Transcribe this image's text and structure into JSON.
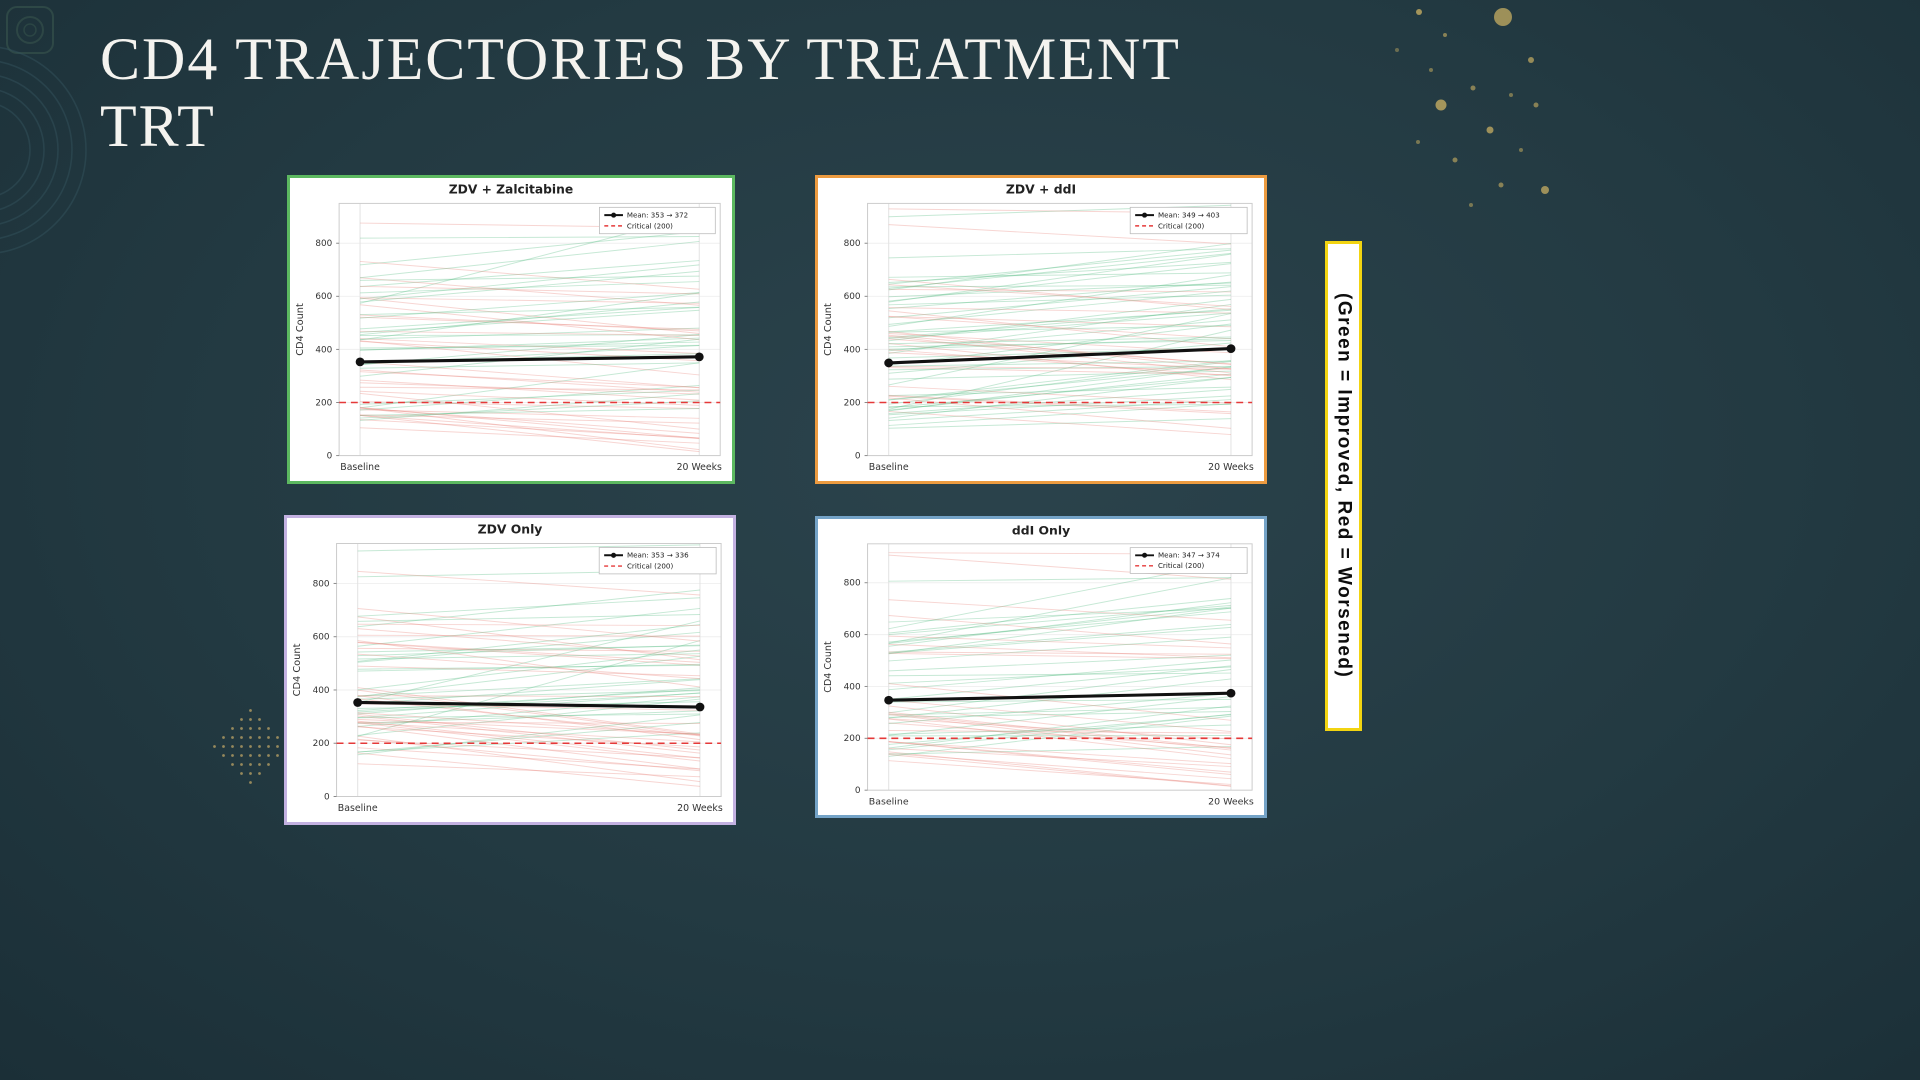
{
  "slide": {
    "title": "CD4 TRAJECTORIES BY TREATMENT\nTRT",
    "side_note": "(Green = Improved, Red = Worsened)",
    "background_color": "#223840",
    "side_note_border_color": "#f2d411"
  },
  "chart_data": [
    {
      "type": "line",
      "title": "ZDV + Zalcitabine",
      "panel_border_color": "#5cb860",
      "x_categories": [
        "Baseline",
        "20 Weeks"
      ],
      "ylabel": "CD4 Count",
      "ylim": [
        0,
        950
      ],
      "yticks": [
        0,
        200,
        400,
        600,
        800
      ],
      "grid": true,
      "legend_position": "upper right",
      "series": [
        {
          "name": "Mean: 353 → 372",
          "style": "mean",
          "values": [
            353,
            372
          ],
          "color": "#111111"
        },
        {
          "name": "Critical (200)",
          "style": "critical",
          "values": [
            200,
            200
          ],
          "color": "#e53939"
        }
      ],
      "individual_trajectories": {
        "count": 62,
        "seed": 11,
        "improved_color": "#57bd84",
        "worsened_color": "#e8857c",
        "note": "per-patient CD4 lines; green = improved, red = worsened"
      }
    },
    {
      "type": "line",
      "title": "ZDV + ddI",
      "panel_border_color": "#ec9b40",
      "x_categories": [
        "Baseline",
        "20 Weeks"
      ],
      "ylabel": "CD4 Count",
      "ylim": [
        0,
        950
      ],
      "yticks": [
        0,
        200,
        400,
        600,
        800
      ],
      "grid": true,
      "legend_position": "upper right",
      "series": [
        {
          "name": "Mean: 349 → 403",
          "style": "mean",
          "values": [
            349,
            403
          ],
          "color": "#111111"
        },
        {
          "name": "Critical (200)",
          "style": "critical",
          "values": [
            200,
            200
          ],
          "color": "#e53939"
        }
      ],
      "individual_trajectories": {
        "count": 72,
        "seed": 23,
        "improved_color": "#57bd84",
        "worsened_color": "#e8857c",
        "note": "per-patient CD4 lines; green = improved, red = worsened"
      }
    },
    {
      "type": "line",
      "title": "ZDV Only",
      "panel_border_color": "#c3b1e1",
      "x_categories": [
        "Baseline",
        "20 Weeks"
      ],
      "ylabel": "CD4 Count",
      "ylim": [
        0,
        950
      ],
      "yticks": [
        0,
        200,
        400,
        600,
        800
      ],
      "grid": true,
      "legend_position": "upper right",
      "series": [
        {
          "name": "Mean: 353 → 336",
          "style": "mean",
          "values": [
            353,
            336
          ],
          "color": "#111111"
        },
        {
          "name": "Critical (200)",
          "style": "critical",
          "values": [
            200,
            200
          ],
          "color": "#e53939"
        }
      ],
      "individual_trajectories": {
        "count": 66,
        "seed": 37,
        "improved_color": "#57bd84",
        "worsened_color": "#e8857c",
        "note": "per-patient CD4 lines; green = improved, red = worsened"
      }
    },
    {
      "type": "line",
      "title": "ddI Only",
      "panel_border_color": "#74a3c7",
      "x_categories": [
        "Baseline",
        "20 Weeks"
      ],
      "ylabel": "CD4 Count",
      "ylim": [
        0,
        950
      ],
      "yticks": [
        0,
        200,
        400,
        600,
        800
      ],
      "grid": true,
      "legend_position": "upper right",
      "series": [
        {
          "name": "Mean: 347 → 374",
          "style": "mean",
          "values": [
            347,
            374
          ],
          "color": "#111111"
        },
        {
          "name": "Critical (200)",
          "style": "critical",
          "values": [
            200,
            200
          ],
          "color": "#e53939"
        }
      ],
      "individual_trajectories": {
        "count": 58,
        "seed": 53,
        "improved_color": "#57bd84",
        "worsened_color": "#e8857c",
        "note": "per-patient CD4 lines; green = improved, red = worsened"
      }
    }
  ]
}
